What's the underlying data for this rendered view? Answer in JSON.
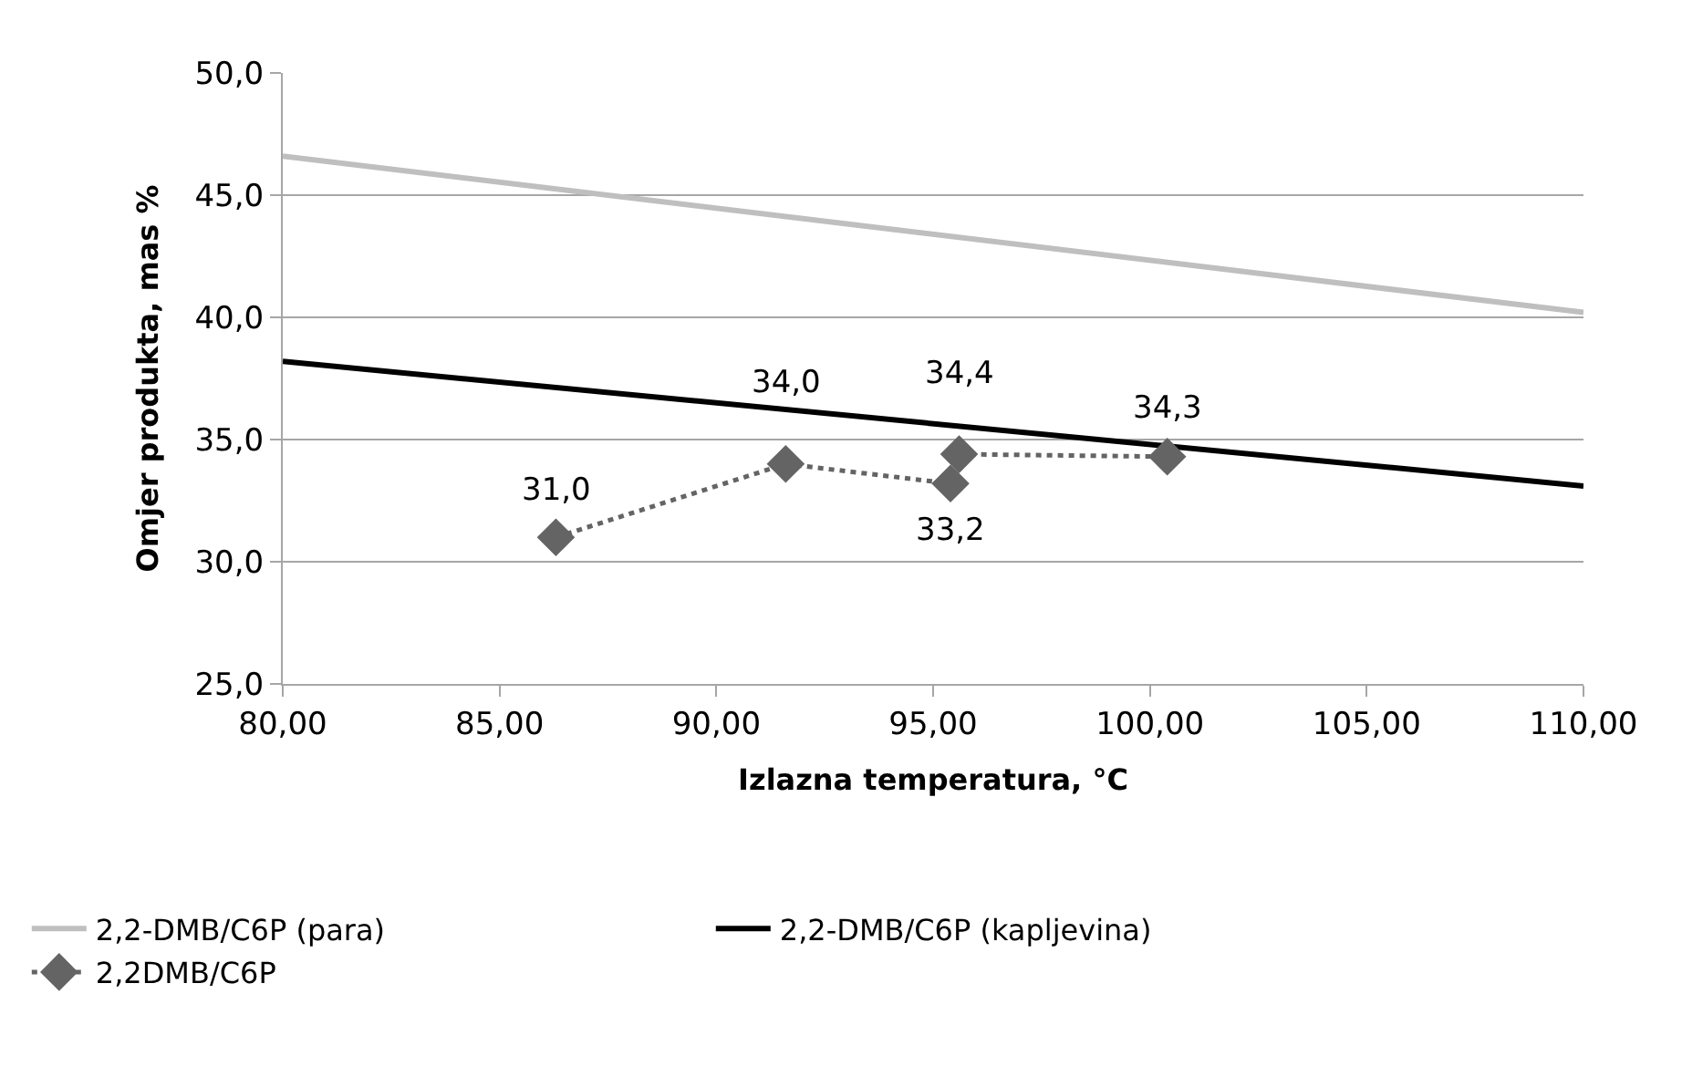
{
  "chart_data": {
    "type": "line",
    "xlabel": "Izlazna temperatura, °C",
    "ylabel": "Omjer produkta, mas %",
    "xlim": [
      80,
      110
    ],
    "xticks": [
      {
        "value": 80,
        "label": "80,00"
      },
      {
        "value": 85,
        "label": "85,00"
      },
      {
        "value": 90,
        "label": "90,00"
      },
      {
        "value": 95,
        "label": "95,00"
      },
      {
        "value": 100,
        "label": "100,00"
      },
      {
        "value": 105,
        "label": "105,00"
      },
      {
        "value": 110,
        "label": "110,00"
      }
    ],
    "ylim": [
      25,
      50
    ],
    "yticks": [
      {
        "value": 25,
        "label": "25,0"
      },
      {
        "value": 30,
        "label": "30,0"
      },
      {
        "value": 35,
        "label": "35,0"
      },
      {
        "value": 40,
        "label": "40,0"
      },
      {
        "value": 45,
        "label": "45,0"
      },
      {
        "value": 50,
        "label": "50,0"
      }
    ],
    "grid": "y",
    "legend": "bottom",
    "series": [
      {
        "name": "2,2-DMB/C6P (para)",
        "color": "#bfbfbf",
        "x": [
          80,
          110
        ],
        "values": [
          46.6,
          40.2
        ],
        "marker": "none",
        "line_style": "solid"
      },
      {
        "name": "2,2-DMB/C6P (kapljevina)",
        "color": "#000000",
        "x": [
          80,
          110
        ],
        "values": [
          38.2,
          33.1
        ],
        "marker": "none",
        "line_style": "solid"
      },
      {
        "name": "2,2DMB/C6P",
        "color": "#646464",
        "x": [
          86.3,
          91.6,
          95.4,
          95.6,
          100.4
        ],
        "values": [
          31.0,
          34.0,
          33.2,
          34.4,
          34.3
        ],
        "marker": "diamond",
        "line_style": "dotted",
        "value_labels": [
          "31,0",
          "34,0",
          "33,2",
          "34,4",
          "34,3"
        ]
      }
    ]
  }
}
